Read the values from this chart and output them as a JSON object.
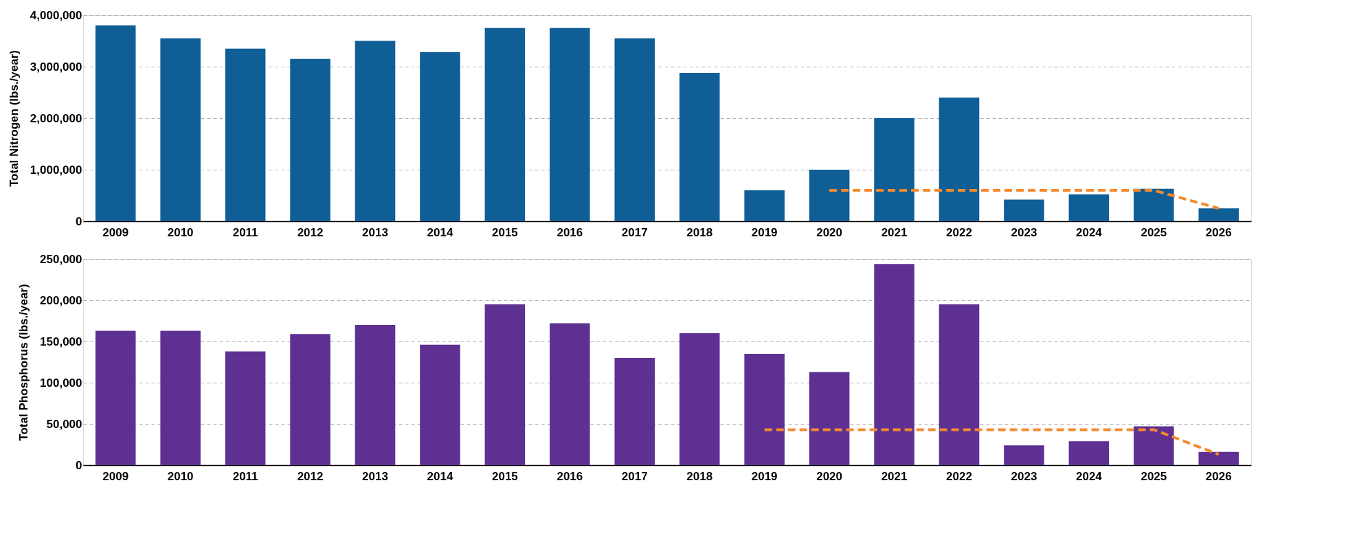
{
  "chart_data": [
    {
      "type": "bar",
      "ylabel": "Total Nitrogen (lbs./year)",
      "categories": [
        "2009",
        "2010",
        "2011",
        "2012",
        "2013",
        "2014",
        "2015",
        "2016",
        "2017",
        "2018",
        "2019",
        "2020",
        "2021",
        "2022",
        "2023",
        "2024",
        "2025",
        "2026"
      ],
      "series": [
        {
          "color": "#0f5e96",
          "values": [
            3800000,
            3550000,
            3350000,
            3150000,
            3500000,
            3280000,
            3750000,
            3750000,
            3550000,
            2880000,
            600000,
            1000000,
            2000000,
            2400000,
            420000,
            520000,
            630000,
            250000
          ]
        },
        {
          "type": "line",
          "color": "#f58a2e",
          "line_style": "dashed",
          "values": [
            null,
            null,
            null,
            null,
            null,
            null,
            null,
            null,
            null,
            null,
            null,
            600000,
            600000,
            600000,
            600000,
            600000,
            600000,
            250000
          ]
        }
      ],
      "ylim": [
        0,
        4000000
      ],
      "yticks": [
        {
          "value": 0,
          "label": "0"
        },
        {
          "value": 1000000,
          "label": "1,000,000"
        },
        {
          "value": 2000000,
          "label": "2,000,000"
        },
        {
          "value": 3000000,
          "label": "3,000,000"
        },
        {
          "value": 4000000,
          "label": "4,000,000"
        }
      ],
      "grid": "y",
      "legend": false
    },
    {
      "type": "bar",
      "ylabel": "Total Phosphorus (lbs./year)",
      "categories": [
        "2009",
        "2010",
        "2011",
        "2012",
        "2013",
        "2014",
        "2015",
        "2016",
        "2017",
        "2018",
        "2019",
        "2020",
        "2021",
        "2022",
        "2023",
        "2024",
        "2025",
        "2026"
      ],
      "series": [
        {
          "color": "#5e3092",
          "values": [
            163000,
            163000,
            138000,
            159000,
            170000,
            146000,
            195000,
            172000,
            130000,
            160000,
            135000,
            113000,
            244000,
            195000,
            24000,
            29000,
            47000,
            16000
          ]
        },
        {
          "type": "line",
          "color": "#f58a2e",
          "line_style": "dashed",
          "values": [
            null,
            null,
            null,
            null,
            null,
            null,
            null,
            null,
            null,
            null,
            43000,
            43000,
            43000,
            43000,
            43000,
            43000,
            43000,
            13000
          ]
        }
      ],
      "ylim": [
        0,
        250000
      ],
      "yticks": [
        {
          "value": 0,
          "label": "0"
        },
        {
          "value": 50000,
          "label": "50,000"
        },
        {
          "value": 100000,
          "label": "100,000"
        },
        {
          "value": 150000,
          "label": "150,000"
        },
        {
          "value": 200000,
          "label": "200,000"
        },
        {
          "value": 250000,
          "label": "250,000"
        }
      ],
      "grid": "y",
      "legend": false
    }
  ]
}
